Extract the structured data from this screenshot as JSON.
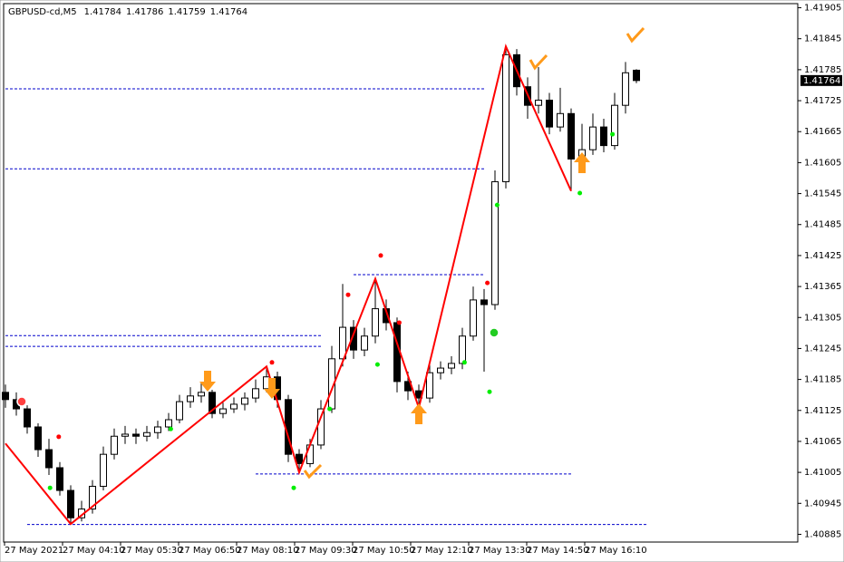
{
  "chart_data": {
    "type": "candlestick",
    "symbol": "GBPUSD-cd,M5",
    "categories": [
      "27 May 2021",
      "27 May 04:10",
      "27 May 05:30",
      "27 May 06:50",
      "27 May 08:10",
      "27 May 09:30",
      "27 May 10:50",
      "27 May 12:10",
      "27 May 13:30",
      "27 May 14:50",
      "27 May 16:10"
    ],
    "ylim": [
      1.4087,
      1.4192
    ],
    "yticks": [
      1.41905,
      1.41845,
      1.41785,
      1.41725,
      1.41665,
      1.41605,
      1.41545,
      1.41485,
      1.41425,
      1.41365,
      1.41305,
      1.41245,
      1.41185,
      1.41125,
      1.41065,
      1.41005,
      1.40945,
      1.40885
    ],
    "up_color": "#ffffff",
    "down_color": "#000000",
    "wick_color": "#000000",
    "candles": [
      [
        1.4116,
        1.41175,
        1.4113,
        1.41146
      ],
      [
        1.41146,
        1.4116,
        1.41115,
        1.41128
      ],
      [
        1.41128,
        1.41135,
        1.4108,
        1.41093
      ],
      [
        1.41093,
        1.411,
        1.41035,
        1.41049
      ],
      [
        1.41049,
        1.4107,
        1.41,
        1.41014
      ],
      [
        1.41014,
        1.41025,
        1.4096,
        1.4097
      ],
      [
        1.4097,
        1.4098,
        1.40905,
        1.40917
      ],
      [
        1.40917,
        1.4095,
        1.4091,
        1.40934
      ],
      [
        1.40934,
        1.4099,
        1.40925,
        1.40978
      ],
      [
        1.40978,
        1.41055,
        1.4097,
        1.4104
      ],
      [
        1.4104,
        1.4109,
        1.4103,
        1.41075
      ],
      [
        1.41075,
        1.41095,
        1.4106,
        1.41079
      ],
      [
        1.41079,
        1.4109,
        1.4106,
        1.41075
      ],
      [
        1.41075,
        1.41095,
        1.41065,
        1.41082
      ],
      [
        1.41082,
        1.41105,
        1.4107,
        1.41093
      ],
      [
        1.41093,
        1.4112,
        1.41085,
        1.41107
      ],
      [
        1.41107,
        1.41155,
        1.411,
        1.41142
      ],
      [
        1.41142,
        1.4117,
        1.4113,
        1.41153
      ],
      [
        1.41153,
        1.4118,
        1.4114,
        1.4116
      ],
      [
        1.4116,
        1.41165,
        1.4111,
        1.41119
      ],
      [
        1.41119,
        1.4114,
        1.4111,
        1.41128
      ],
      [
        1.41128,
        1.4115,
        1.4112,
        1.41137
      ],
      [
        1.41137,
        1.4116,
        1.41125,
        1.41149
      ],
      [
        1.41149,
        1.41185,
        1.4114,
        1.41167
      ],
      [
        1.41167,
        1.4121,
        1.4116,
        1.4119
      ],
      [
        1.4119,
        1.412,
        1.4113,
        1.41146
      ],
      [
        1.41146,
        1.41155,
        1.41025,
        1.4104
      ],
      [
        1.4104,
        1.4105,
        1.41005,
        1.41022
      ],
      [
        1.41022,
        1.4107,
        1.41015,
        1.41058
      ],
      [
        1.41058,
        1.41145,
        1.4105,
        1.41128
      ],
      [
        1.41128,
        1.4125,
        1.4112,
        1.41225
      ],
      [
        1.41225,
        1.4137,
        1.4121,
        1.41286
      ],
      [
        1.41286,
        1.413,
        1.41225,
        1.41242
      ],
      [
        1.41242,
        1.41285,
        1.4123,
        1.41269
      ],
      [
        1.41269,
        1.4138,
        1.41255,
        1.41322
      ],
      [
        1.41322,
        1.4134,
        1.4128,
        1.41295
      ],
      [
        1.41295,
        1.41305,
        1.4116,
        1.41181
      ],
      [
        1.41181,
        1.412,
        1.41145,
        1.41163
      ],
      [
        1.41163,
        1.41175,
        1.4113,
        1.41149
      ],
      [
        1.41149,
        1.41215,
        1.4114,
        1.41198
      ],
      [
        1.41198,
        1.4122,
        1.41185,
        1.41207
      ],
      [
        1.41207,
        1.4123,
        1.41195,
        1.41216
      ],
      [
        1.41216,
        1.41285,
        1.41205,
        1.41269
      ],
      [
        1.41269,
        1.41365,
        1.4126,
        1.41339
      ],
      [
        1.41339,
        1.4136,
        1.412,
        1.4133
      ],
      [
        1.4133,
        1.4159,
        1.4132,
        1.41568
      ],
      [
        1.41568,
        1.4183,
        1.41555,
        1.41814
      ],
      [
        1.41814,
        1.41825,
        1.41735,
        1.41752
      ],
      [
        1.41752,
        1.4177,
        1.4169,
        1.41716
      ],
      [
        1.41716,
        1.4179,
        1.417,
        1.41726
      ],
      [
        1.41726,
        1.4174,
        1.4166,
        1.41674
      ],
      [
        1.41674,
        1.4175,
        1.41665,
        1.417
      ],
      [
        1.417,
        1.4171,
        1.4155,
        1.41612
      ],
      [
        1.41612,
        1.4168,
        1.4159,
        1.4163
      ],
      [
        1.4163,
        1.417,
        1.4162,
        1.41674
      ],
      [
        1.41674,
        1.4169,
        1.41625,
        1.41638
      ],
      [
        1.41638,
        1.4174,
        1.4163,
        1.41716
      ],
      [
        1.41716,
        1.418,
        1.417,
        1.41779
      ],
      [
        1.41784,
        1.41786,
        1.41759,
        1.41764
      ]
    ],
    "zigzag": {
      "color": "#ff0000",
      "x": [
        0,
        6,
        24,
        27,
        34,
        38,
        46,
        52
      ],
      "values": [
        1.41061,
        1.40905,
        1.4121,
        1.41005,
        1.4138,
        1.4113,
        1.4183,
        1.4155
      ]
    },
    "levels": {
      "color": "#0000cc",
      "items": [
        {
          "value": 1.41748,
          "x": [
            0,
            44
          ]
        },
        {
          "value": 1.41593,
          "x": [
            0,
            44
          ]
        },
        {
          "value": 1.41388,
          "x": [
            32,
            44
          ]
        },
        {
          "value": 1.4127,
          "x": [
            0,
            29
          ]
        },
        {
          "value": 1.41249,
          "x": [
            0,
            29
          ]
        },
        {
          "value": 1.41002,
          "x": [
            23,
            52
          ]
        },
        {
          "value": 1.40904,
          "x": [
            2,
            59
          ]
        }
      ]
    },
    "signals": [
      {
        "color": "#ff0000",
        "x": [
          4.9,
          24.5,
          31.5,
          34.5,
          36.2,
          44.3
        ],
        "values": [
          1.41074,
          1.41218,
          1.41349,
          1.41425,
          1.41295,
          1.41372
        ]
      },
      {
        "color": "#00ee00",
        "x": [
          4.1,
          15.2,
          26.5,
          29.8,
          34.2,
          42.2,
          44.5,
          45.2,
          52.8,
          55.8
        ],
        "values": [
          1.40975,
          1.41089,
          1.40975,
          1.41128,
          1.41214,
          1.41218,
          1.41161,
          1.41523,
          1.41546,
          1.4166
        ]
      }
    ]
  }
}
